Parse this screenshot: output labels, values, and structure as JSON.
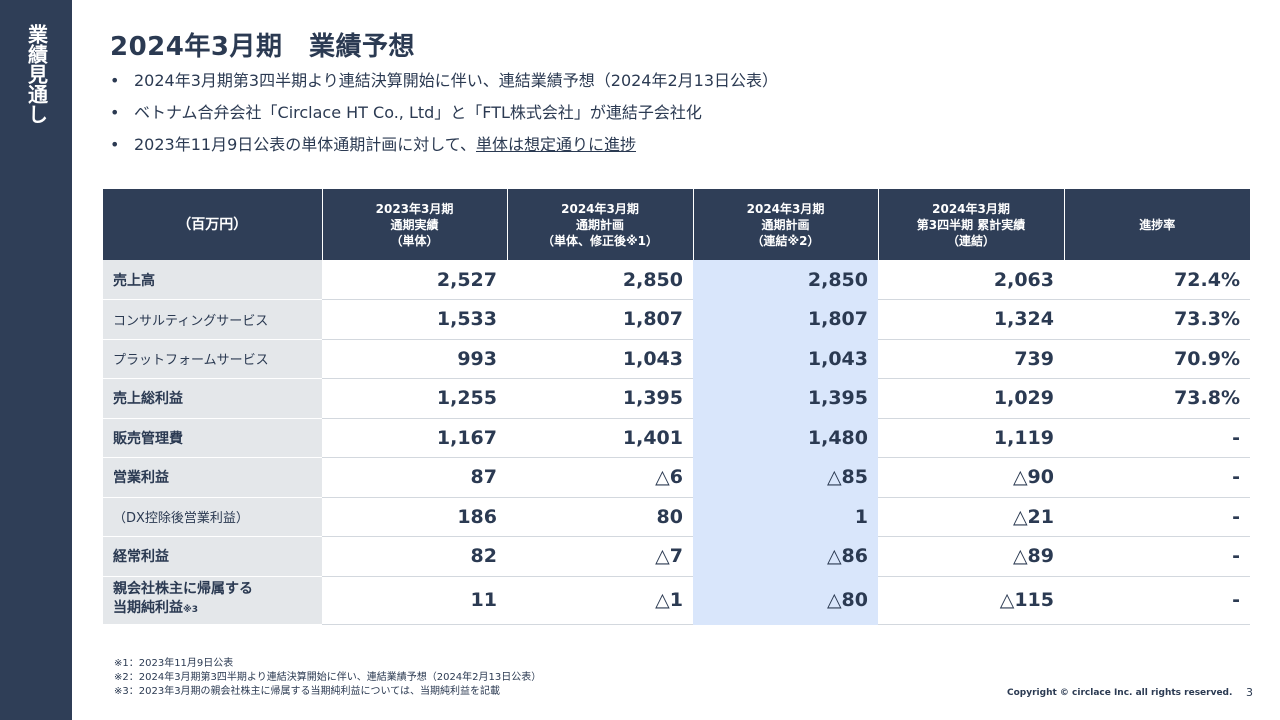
{
  "sidebar": {
    "label": "業績見通し"
  },
  "title": "2024年3月期　業績予想",
  "bullets": [
    {
      "text": "2024年3月期第3四半期より連結決算開始に伴い、連結業績予想（2024年2月13日公表）"
    },
    {
      "text": "ベトナム合弁会社「Circlace HT Co., Ltd」と「FTL株式会社」が連結子会社化"
    },
    {
      "text": "2023年11月9日公表の単体通期計画に対して、",
      "underlined": "単体は想定通りに進捗"
    }
  ],
  "table": {
    "headers": [
      {
        "lines": [
          "（百万円）"
        ]
      },
      {
        "lines": [
          "2023年3月期",
          "通期実績",
          "（単体）"
        ]
      },
      {
        "lines": [
          "2024年3月期",
          "通期計画",
          "（単体、修正後※1）"
        ]
      },
      {
        "lines": [
          "2024年3月期",
          "通期計画",
          "（連結※2）"
        ]
      },
      {
        "lines": [
          "2024年3月期",
          "第3四半期 累計実績",
          "（連結）"
        ]
      },
      {
        "lines": [
          "進捗率"
        ]
      }
    ],
    "rows": [
      {
        "label": "売上高",
        "values": [
          "2,527",
          "2,850",
          "2,850",
          "2,063",
          "72.4%"
        ]
      },
      {
        "label": "コンサルティングサービス",
        "values": [
          "1,533",
          "1,807",
          "1,807",
          "1,324",
          "73.3%"
        ]
      },
      {
        "label": "プラットフォームサービス",
        "values": [
          "993",
          "1,043",
          "1,043",
          "739",
          "70.9%"
        ]
      },
      {
        "label": "売上総利益",
        "values": [
          "1,255",
          "1,395",
          "1,395",
          "1,029",
          "73.8%"
        ]
      },
      {
        "label": "販売管理費",
        "values": [
          "1,167",
          "1,401",
          "1,480",
          "1,119",
          "-"
        ]
      },
      {
        "label": "営業利益",
        "values": [
          "87",
          "△6",
          "△85",
          "△90",
          "-"
        ]
      },
      {
        "label": "（DX控除後営業利益）",
        "values": [
          "186",
          "80",
          "1",
          "△21",
          "-"
        ]
      },
      {
        "label": "経常利益",
        "values": [
          "82",
          "△7",
          "△86",
          "△89",
          "-"
        ]
      },
      {
        "label_line1": "親会社株主に帰属する",
        "label_line2": "当期純利益",
        "label_mark": "※3",
        "values": [
          "11",
          "△1",
          "△80",
          "△115",
          "-"
        ]
      }
    ]
  },
  "notes": [
    "※1：2023年11月9日公表",
    "※2：2024年3月期第3四半期より連結決算開始に伴い、連結業績予想（2024年2月13日公表）",
    "※3：2023年3月期の親会社株主に帰属する当期純利益については、当期純利益を記載"
  ],
  "copyright": "Copyright © circlace Inc. all rights reserved.",
  "page_number": "3",
  "colors": {
    "navy": "#2f3e57",
    "highlight_column": "#d9e6fb",
    "label_cell": "#e4e7ea"
  }
}
